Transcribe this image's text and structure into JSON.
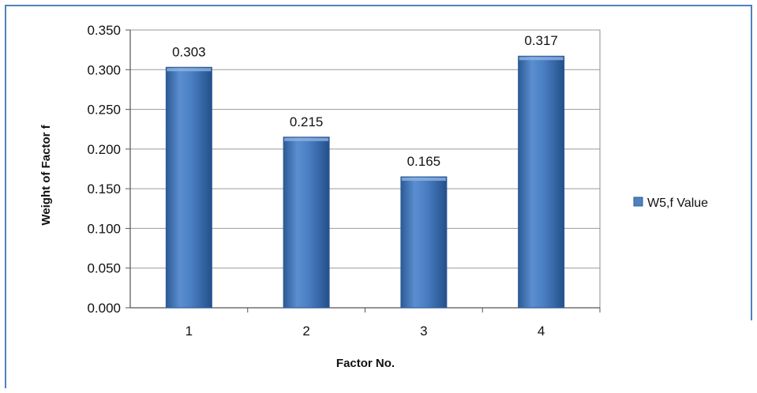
{
  "chart_data": {
    "type": "bar",
    "categories": [
      "1",
      "2",
      "3",
      "4"
    ],
    "series": [
      {
        "name": "W5,f Value",
        "values": [
          0.303,
          0.215,
          0.165,
          0.317
        ]
      }
    ],
    "data_labels": [
      "0.303",
      "0.215",
      "0.165",
      "0.317"
    ],
    "title": "",
    "xlabel": "Factor No.",
    "ylabel": "Weight of Factor f",
    "ylim": [
      0,
      0.35
    ],
    "yticks": [
      "0.000",
      "0.050",
      "0.100",
      "0.150",
      "0.200",
      "0.250",
      "0.300",
      "0.350"
    ],
    "ytick_values": [
      0,
      0.05,
      0.1,
      0.15,
      0.2,
      0.25,
      0.3,
      0.35
    ],
    "grid": true,
    "legend": "right",
    "colors": {
      "bar": "#4f81bd",
      "bar_dark": "#2d5a96",
      "grid": "#9a9a9a",
      "frame": "#4f81bd"
    }
  }
}
